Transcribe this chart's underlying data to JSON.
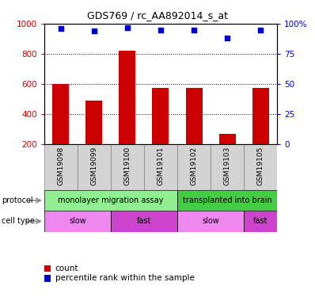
{
  "title": "GDS769 / rc_AA892014_s_at",
  "samples": [
    "GSM19098",
    "GSM19099",
    "GSM19100",
    "GSM19101",
    "GSM19102",
    "GSM19103",
    "GSM19105"
  ],
  "counts": [
    600,
    490,
    820,
    572,
    572,
    270,
    572
  ],
  "percentile_ranks": [
    96,
    94,
    97,
    95,
    95,
    88,
    95
  ],
  "ylim_left": [
    200,
    1000
  ],
  "ylim_right": [
    0,
    100
  ],
  "yticks_left": [
    200,
    400,
    600,
    800,
    1000
  ],
  "yticks_right": [
    0,
    25,
    50,
    75,
    100
  ],
  "ytick_labels_right": [
    "0",
    "25",
    "50",
    "75",
    "100%"
  ],
  "bar_color": "#cc0000",
  "dot_color": "#0000cc",
  "protocol_groups": [
    {
      "label": "monolayer migration assay",
      "start": 0,
      "end": 4,
      "color": "#90ee90"
    },
    {
      "label": "transplanted into brain",
      "start": 4,
      "end": 7,
      "color": "#44cc44"
    }
  ],
  "cell_type_groups": [
    {
      "label": "slow",
      "start": 0,
      "end": 2,
      "color": "#ee88ee"
    },
    {
      "label": "fast",
      "start": 2,
      "end": 4,
      "color": "#cc44cc"
    },
    {
      "label": "slow",
      "start": 4,
      "end": 6,
      "color": "#ee88ee"
    },
    {
      "label": "fast",
      "start": 6,
      "end": 7,
      "color": "#cc44cc"
    }
  ],
  "legend_count_color": "#cc0000",
  "legend_percentile_color": "#0000cc",
  "label_color_left": "#cc0000",
  "label_color_right": "#0000cc",
  "grid_color": "#000000",
  "sample_box_color": "#d3d3d3"
}
